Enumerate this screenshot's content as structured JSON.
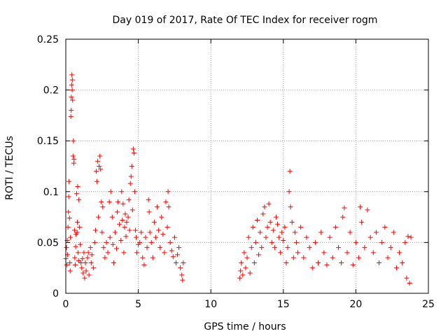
{
  "chart_data": {
    "type": "scatter",
    "title": "Day 019 of 2017, Rate Of TEC Index for receiver rogm",
    "xlabel": "GPS time / hours",
    "ylabel": "ROTI / TECUs",
    "xlim": [
      0,
      25
    ],
    "ylim": [
      0,
      0.25
    ],
    "x_ticks": [
      "0",
      "5",
      "10",
      "15",
      "20",
      "25"
    ],
    "y_ticks": [
      "0",
      "0.05",
      "0.1",
      "0.15",
      "0.2",
      "0.25"
    ],
    "grid": true,
    "marker": "plus",
    "series": [
      {
        "color": "#ff0000",
        "points": [
          [
            0.0,
            0.034
          ],
          [
            0.05,
            0.045
          ],
          [
            0.08,
            0.028
          ],
          [
            0.1,
            0.052
          ],
          [
            0.12,
            0.038
          ],
          [
            0.15,
            0.065
          ],
          [
            0.18,
            0.08
          ],
          [
            0.2,
            0.095
          ],
          [
            0.22,
            0.11
          ],
          [
            0.25,
            0.074
          ],
          [
            0.28,
            0.03
          ],
          [
            0.3,
            0.022
          ],
          [
            0.32,
            0.055
          ],
          [
            0.35,
            0.174
          ],
          [
            0.37,
            0.18
          ],
          [
            0.38,
            0.193
          ],
          [
            0.4,
            0.205
          ],
          [
            0.42,
            0.215
          ],
          [
            0.44,
            0.2
          ],
          [
            0.45,
            0.21
          ],
          [
            0.47,
            0.19
          ],
          [
            0.5,
            0.135
          ],
          [
            0.52,
            0.15
          ],
          [
            0.55,
            0.128
          ],
          [
            0.57,
            0.132
          ],
          [
            0.6,
            0.062
          ],
          [
            0.62,
            0.035
          ],
          [
            0.65,
            0.028
          ],
          [
            0.68,
            0.046
          ],
          [
            0.7,
            0.058
          ],
          [
            0.75,
            0.098
          ],
          [
            0.78,
            0.06
          ],
          [
            0.8,
            0.07
          ],
          [
            0.82,
            0.105
          ],
          [
            0.85,
            0.04
          ],
          [
            0.88,
            0.032
          ],
          [
            0.9,
            0.092
          ],
          [
            0.95,
            0.065
          ],
          [
            1.0,
            0.048
          ],
          [
            1.05,
            0.03
          ],
          [
            1.1,
            0.025
          ],
          [
            1.15,
            0.034
          ],
          [
            1.2,
            0.02
          ],
          [
            1.25,
            0.04
          ],
          [
            1.3,
            0.015
          ],
          [
            1.35,
            0.03
          ],
          [
            1.4,
            0.022
          ],
          [
            1.5,
            0.035
          ],
          [
            1.55,
            0.04
          ],
          [
            1.6,
            0.018
          ],
          [
            1.7,
            0.045
          ],
          [
            1.75,
            0.03
          ],
          [
            1.8,
            0.038
          ],
          [
            1.9,
            0.025
          ],
          [
            2.0,
            0.05
          ],
          [
            2.05,
            0.062
          ],
          [
            2.1,
            0.12
          ],
          [
            2.15,
            0.11
          ],
          [
            2.2,
            0.13
          ],
          [
            2.25,
            0.075
          ],
          [
            2.3,
            0.125
          ],
          [
            2.35,
            0.135
          ],
          [
            2.4,
            0.122
          ],
          [
            2.45,
            0.09
          ],
          [
            2.5,
            0.06
          ],
          [
            2.55,
            0.085
          ],
          [
            2.6,
            0.045
          ],
          [
            2.7,
            0.035
          ],
          [
            2.8,
            0.05
          ],
          [
            2.9,
            0.04
          ],
          [
            3.0,
            0.09
          ],
          [
            3.05,
            0.055
          ],
          [
            3.1,
            0.1
          ],
          [
            3.2,
            0.075
          ],
          [
            3.25,
            0.048
          ],
          [
            3.3,
            0.03
          ],
          [
            3.4,
            0.06
          ],
          [
            3.5,
            0.044
          ],
          [
            3.55,
            0.08
          ],
          [
            3.6,
            0.09
          ],
          [
            3.7,
            0.068
          ],
          [
            3.8,
            0.052
          ],
          [
            3.85,
            0.1
          ],
          [
            3.9,
            0.072
          ],
          [
            3.95,
            0.088
          ],
          [
            4.0,
            0.04
          ],
          [
            4.05,
            0.065
          ],
          [
            4.1,
            0.078
          ],
          [
            4.15,
            0.056
          ],
          [
            4.2,
            0.07
          ],
          [
            4.3,
            0.075
          ],
          [
            4.35,
            0.092
          ],
          [
            4.4,
            0.062
          ],
          [
            4.45,
            0.108
          ],
          [
            4.5,
            0.115
          ],
          [
            4.55,
            0.125
          ],
          [
            4.6,
            0.082
          ],
          [
            4.65,
            0.142
          ],
          [
            4.7,
            0.138
          ],
          [
            4.75,
            0.1
          ],
          [
            4.8,
            0.062
          ],
          [
            4.85,
            0.055
          ],
          [
            4.9,
            0.04
          ],
          [
            5.0,
            0.048
          ],
          [
            5.1,
            0.05
          ],
          [
            5.2,
            0.06
          ],
          [
            5.3,
            0.035
          ],
          [
            5.4,
            0.028
          ],
          [
            5.5,
            0.055
          ],
          [
            5.6,
            0.045
          ],
          [
            5.7,
            0.092
          ],
          [
            5.75,
            0.08
          ],
          [
            5.8,
            0.06
          ],
          [
            5.9,
            0.05
          ],
          [
            6.0,
            0.035
          ],
          [
            6.1,
            0.07
          ],
          [
            6.2,
            0.055
          ],
          [
            6.3,
            0.085
          ],
          [
            6.4,
            0.062
          ],
          [
            6.5,
            0.045
          ],
          [
            6.6,
            0.075
          ],
          [
            6.7,
            0.058
          ],
          [
            6.8,
            0.04
          ],
          [
            6.9,
            0.09
          ],
          [
            7.0,
            0.065
          ],
          [
            7.05,
            0.1
          ],
          [
            7.1,
            0.085
          ],
          [
            7.2,
            0.05
          ],
          [
            7.3,
            0.042
          ],
          [
            7.4,
            0.036
          ],
          [
            7.5,
            0.055
          ],
          [
            7.6,
            0.03
          ],
          [
            7.7,
            0.038
          ],
          [
            7.8,
            0.045
          ],
          [
            7.9,
            0.025
          ],
          [
            8.0,
            0.018
          ],
          [
            8.05,
            0.013
          ],
          [
            8.1,
            0.03
          ],
          [
            12.0,
            0.015
          ],
          [
            12.05,
            0.022
          ],
          [
            12.1,
            0.03
          ],
          [
            12.2,
            0.018
          ],
          [
            12.3,
            0.04
          ],
          [
            12.4,
            0.025
          ],
          [
            12.5,
            0.035
          ],
          [
            12.6,
            0.055
          ],
          [
            12.7,
            0.02
          ],
          [
            12.8,
            0.045
          ],
          [
            12.9,
            0.065
          ],
          [
            13.0,
            0.03
          ],
          [
            13.1,
            0.05
          ],
          [
            13.2,
            0.072
          ],
          [
            13.3,
            0.038
          ],
          [
            13.4,
            0.06
          ],
          [
            13.5,
            0.045
          ],
          [
            13.6,
            0.078
          ],
          [
            13.7,
            0.085
          ],
          [
            13.8,
            0.055
          ],
          [
            13.9,
            0.065
          ],
          [
            14.0,
            0.088
          ],
          [
            14.1,
            0.07
          ],
          [
            14.2,
            0.05
          ],
          [
            14.3,
            0.062
          ],
          [
            14.4,
            0.045
          ],
          [
            14.5,
            0.075
          ],
          [
            14.6,
            0.068
          ],
          [
            14.7,
            0.055
          ],
          [
            14.8,
            0.04
          ],
          [
            14.9,
            0.06
          ],
          [
            15.0,
            0.052
          ],
          [
            15.1,
            0.065
          ],
          [
            15.2,
            0.03
          ],
          [
            15.3,
            0.045
          ],
          [
            15.4,
            0.1
          ],
          [
            15.45,
            0.12
          ],
          [
            15.5,
            0.085
          ],
          [
            15.6,
            0.07
          ],
          [
            15.7,
            0.035
          ],
          [
            15.8,
            0.06
          ],
          [
            15.9,
            0.05
          ],
          [
            16.0,
            0.04
          ],
          [
            16.2,
            0.065
          ],
          [
            16.4,
            0.035
          ],
          [
            16.6,
            0.055
          ],
          [
            16.8,
            0.045
          ],
          [
            17.0,
            0.025
          ],
          [
            17.2,
            0.05
          ],
          [
            17.4,
            0.03
          ],
          [
            17.6,
            0.06
          ],
          [
            17.8,
            0.04
          ],
          [
            18.0,
            0.028
          ],
          [
            18.2,
            0.055
          ],
          [
            18.4,
            0.035
          ],
          [
            18.6,
            0.065
          ],
          [
            18.8,
            0.045
          ],
          [
            19.0,
            0.03
          ],
          [
            19.1,
            0.075
          ],
          [
            19.2,
            0.084
          ],
          [
            19.4,
            0.04
          ],
          [
            19.6,
            0.06
          ],
          [
            19.8,
            0.028
          ],
          [
            20.0,
            0.05
          ],
          [
            20.2,
            0.035
          ],
          [
            20.3,
            0.085
          ],
          [
            20.4,
            0.07
          ],
          [
            20.6,
            0.045
          ],
          [
            20.8,
            0.082
          ],
          [
            21.0,
            0.055
          ],
          [
            21.2,
            0.04
          ],
          [
            21.4,
            0.06
          ],
          [
            21.6,
            0.03
          ],
          [
            21.8,
            0.05
          ],
          [
            22.0,
            0.065
          ],
          [
            22.2,
            0.035
          ],
          [
            22.4,
            0.045
          ],
          [
            22.6,
            0.06
          ],
          [
            22.8,
            0.025
          ],
          [
            23.0,
            0.04
          ],
          [
            23.2,
            0.03
          ],
          [
            23.4,
            0.05
          ],
          [
            23.5,
            0.015
          ],
          [
            23.6,
            0.056
          ],
          [
            23.7,
            0.01
          ],
          [
            23.8,
            0.055
          ]
        ]
      }
    ]
  }
}
